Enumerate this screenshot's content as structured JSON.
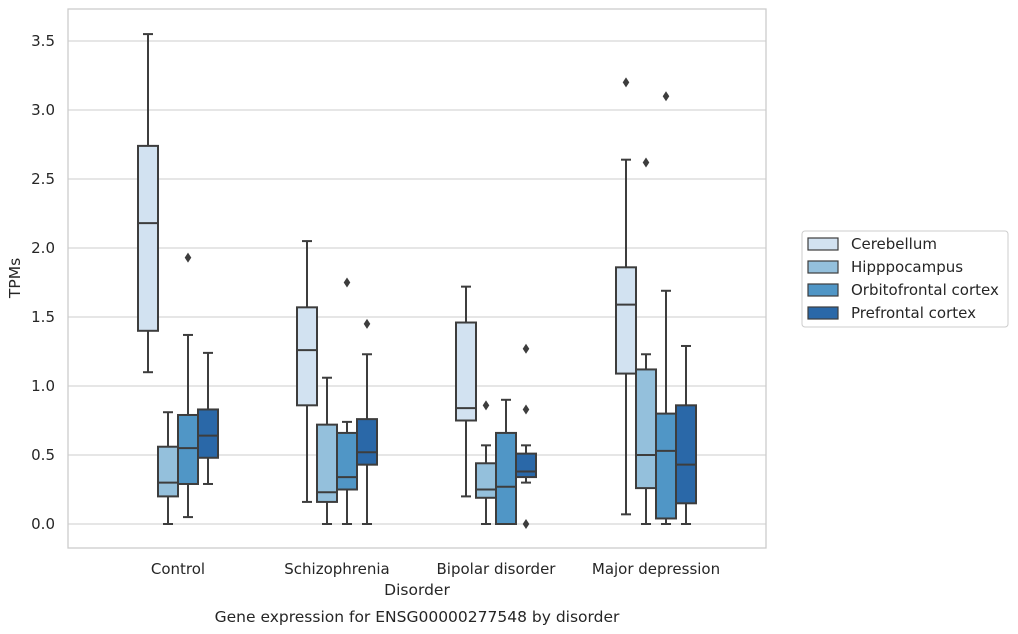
{
  "caption": "Gene expression for ENSG00000277548 by disorder",
  "chart_data": {
    "type": "box",
    "xlabel": "Disorder",
    "ylabel": "TPMs",
    "ylim": [
      -0.17,
      3.75
    ],
    "yticks": [
      "0.0",
      "0.5",
      "1.0",
      "1.5",
      "2.0",
      "2.5",
      "3.0",
      "3.5"
    ],
    "categories": [
      "Control",
      "Schizophrenia",
      "Bipolar disorder",
      "Major depression"
    ],
    "grid": "horizontal",
    "legend_position": "right",
    "series": [
      {
        "name": "Cerebellum",
        "color": "#d2e2f1",
        "boxes": [
          {
            "whislo": 1.1,
            "q1": 1.4,
            "med": 2.18,
            "q3": 2.74,
            "whishi": 3.55,
            "fliers": []
          },
          {
            "whislo": 0.16,
            "q1": 0.86,
            "med": 1.26,
            "q3": 1.57,
            "whishi": 2.05,
            "fliers": []
          },
          {
            "whislo": 0.2,
            "q1": 0.75,
            "med": 0.84,
            "q3": 1.46,
            "whishi": 1.72,
            "fliers": []
          },
          {
            "whislo": 0.07,
            "q1": 1.09,
            "med": 1.59,
            "q3": 1.86,
            "whishi": 2.64,
            "fliers": [
              3.2
            ]
          }
        ]
      },
      {
        "name": "Hipppocampus",
        "color": "#94c0dc",
        "boxes": [
          {
            "whislo": 0.0,
            "q1": 0.2,
            "med": 0.3,
            "q3": 0.56,
            "whishi": 0.81,
            "fliers": []
          },
          {
            "whislo": 0.0,
            "q1": 0.16,
            "med": 0.23,
            "q3": 0.72,
            "whishi": 1.06,
            "fliers": []
          },
          {
            "whislo": 0.0,
            "q1": 0.19,
            "med": 0.25,
            "q3": 0.44,
            "whishi": 0.57,
            "fliers": [
              0.86
            ]
          },
          {
            "whislo": 0.0,
            "q1": 0.26,
            "med": 0.5,
            "q3": 1.12,
            "whishi": 1.23,
            "fliers": [
              2.62
            ]
          }
        ]
      },
      {
        "name": "Orbitofrontal cortex",
        "color": "#5096c6",
        "boxes": [
          {
            "whislo": 0.05,
            "q1": 0.29,
            "med": 0.55,
            "q3": 0.79,
            "whishi": 1.37,
            "fliers": [
              1.93
            ]
          },
          {
            "whislo": 0.0,
            "q1": 0.25,
            "med": 0.34,
            "q3": 0.66,
            "whishi": 0.74,
            "fliers": [
              1.75
            ]
          },
          {
            "whislo": 0.0,
            "q1": 0.0,
            "med": 0.27,
            "q3": 0.66,
            "whishi": 0.9,
            "fliers": []
          },
          {
            "whislo": 0.0,
            "q1": 0.04,
            "med": 0.53,
            "q3": 0.8,
            "whishi": 1.69,
            "fliers": [
              3.1
            ]
          }
        ]
      },
      {
        "name": "Prefrontal cortex",
        "color": "#2a68a8",
        "boxes": [
          {
            "whislo": 0.29,
            "q1": 0.48,
            "med": 0.64,
            "q3": 0.83,
            "whishi": 1.24,
            "fliers": []
          },
          {
            "whislo": 0.0,
            "q1": 0.43,
            "med": 0.52,
            "q3": 0.76,
            "whishi": 1.23,
            "fliers": [
              1.45
            ]
          },
          {
            "whislo": 0.3,
            "q1": 0.34,
            "med": 0.38,
            "q3": 0.51,
            "whishi": 0.57,
            "fliers": [
              1.27,
              0.83,
              0.0
            ]
          },
          {
            "whislo": 0.0,
            "q1": 0.15,
            "med": 0.43,
            "q3": 0.86,
            "whishi": 1.29,
            "fliers": []
          }
        ]
      }
    ]
  }
}
